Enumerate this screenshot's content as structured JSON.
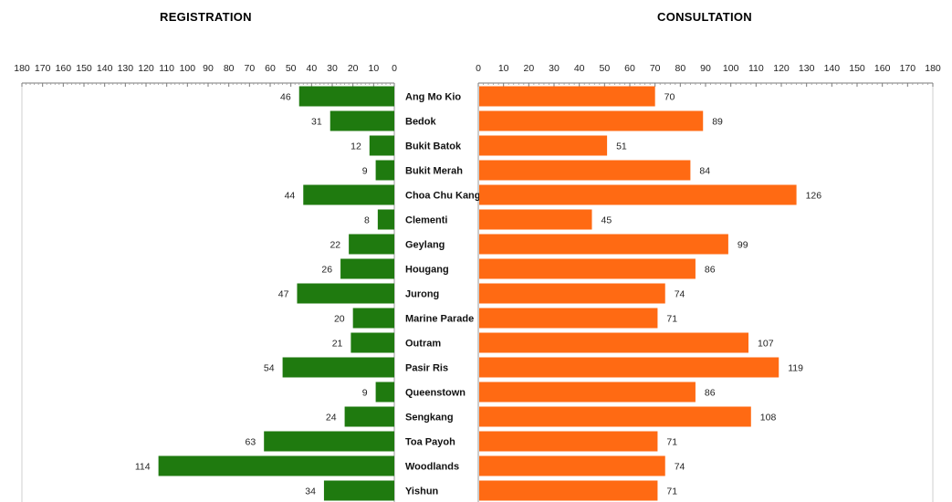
{
  "chart_data": [
    {
      "type": "bar",
      "title": "REGISTRATION",
      "orientation": "horizontal",
      "direction": "right-to-left",
      "xlim": [
        0,
        180
      ],
      "tick_step": 10,
      "bar_color": "#1f7a0f",
      "categories": [
        "Ang Mo Kio",
        "Bedok",
        "Bukit Batok",
        "Bukit Merah",
        "Choa Chu Kang",
        "Clementi",
        "Geylang",
        "Hougang",
        "Jurong",
        "Marine Parade",
        "Outram",
        "Pasir Ris",
        "Queenstown",
        "Sengkang",
        "Toa Payoh",
        "Woodlands",
        "Yishun"
      ],
      "values": [
        46,
        31,
        12,
        9,
        44,
        8,
        22,
        26,
        47,
        20,
        21,
        54,
        9,
        24,
        63,
        114,
        34
      ]
    },
    {
      "type": "bar",
      "title": "CONSULTATION",
      "orientation": "horizontal",
      "direction": "left-to-right",
      "xlim": [
        0,
        180
      ],
      "tick_step": 10,
      "bar_color": "#ff6a13",
      "categories": [
        "Ang Mo Kio",
        "Bedok",
        "Bukit Batok",
        "Bukit Merah",
        "Choa Chu Kang",
        "Clementi",
        "Geylang",
        "Hougang",
        "Jurong",
        "Marine Parade",
        "Outram",
        "Pasir Ris",
        "Queenstown",
        "Sengkang",
        "Toa Payoh",
        "Woodlands",
        "Yishun"
      ],
      "values": [
        70,
        89,
        51,
        84,
        126,
        45,
        99,
        86,
        74,
        71,
        107,
        119,
        86,
        108,
        71,
        74,
        71
      ]
    }
  ]
}
